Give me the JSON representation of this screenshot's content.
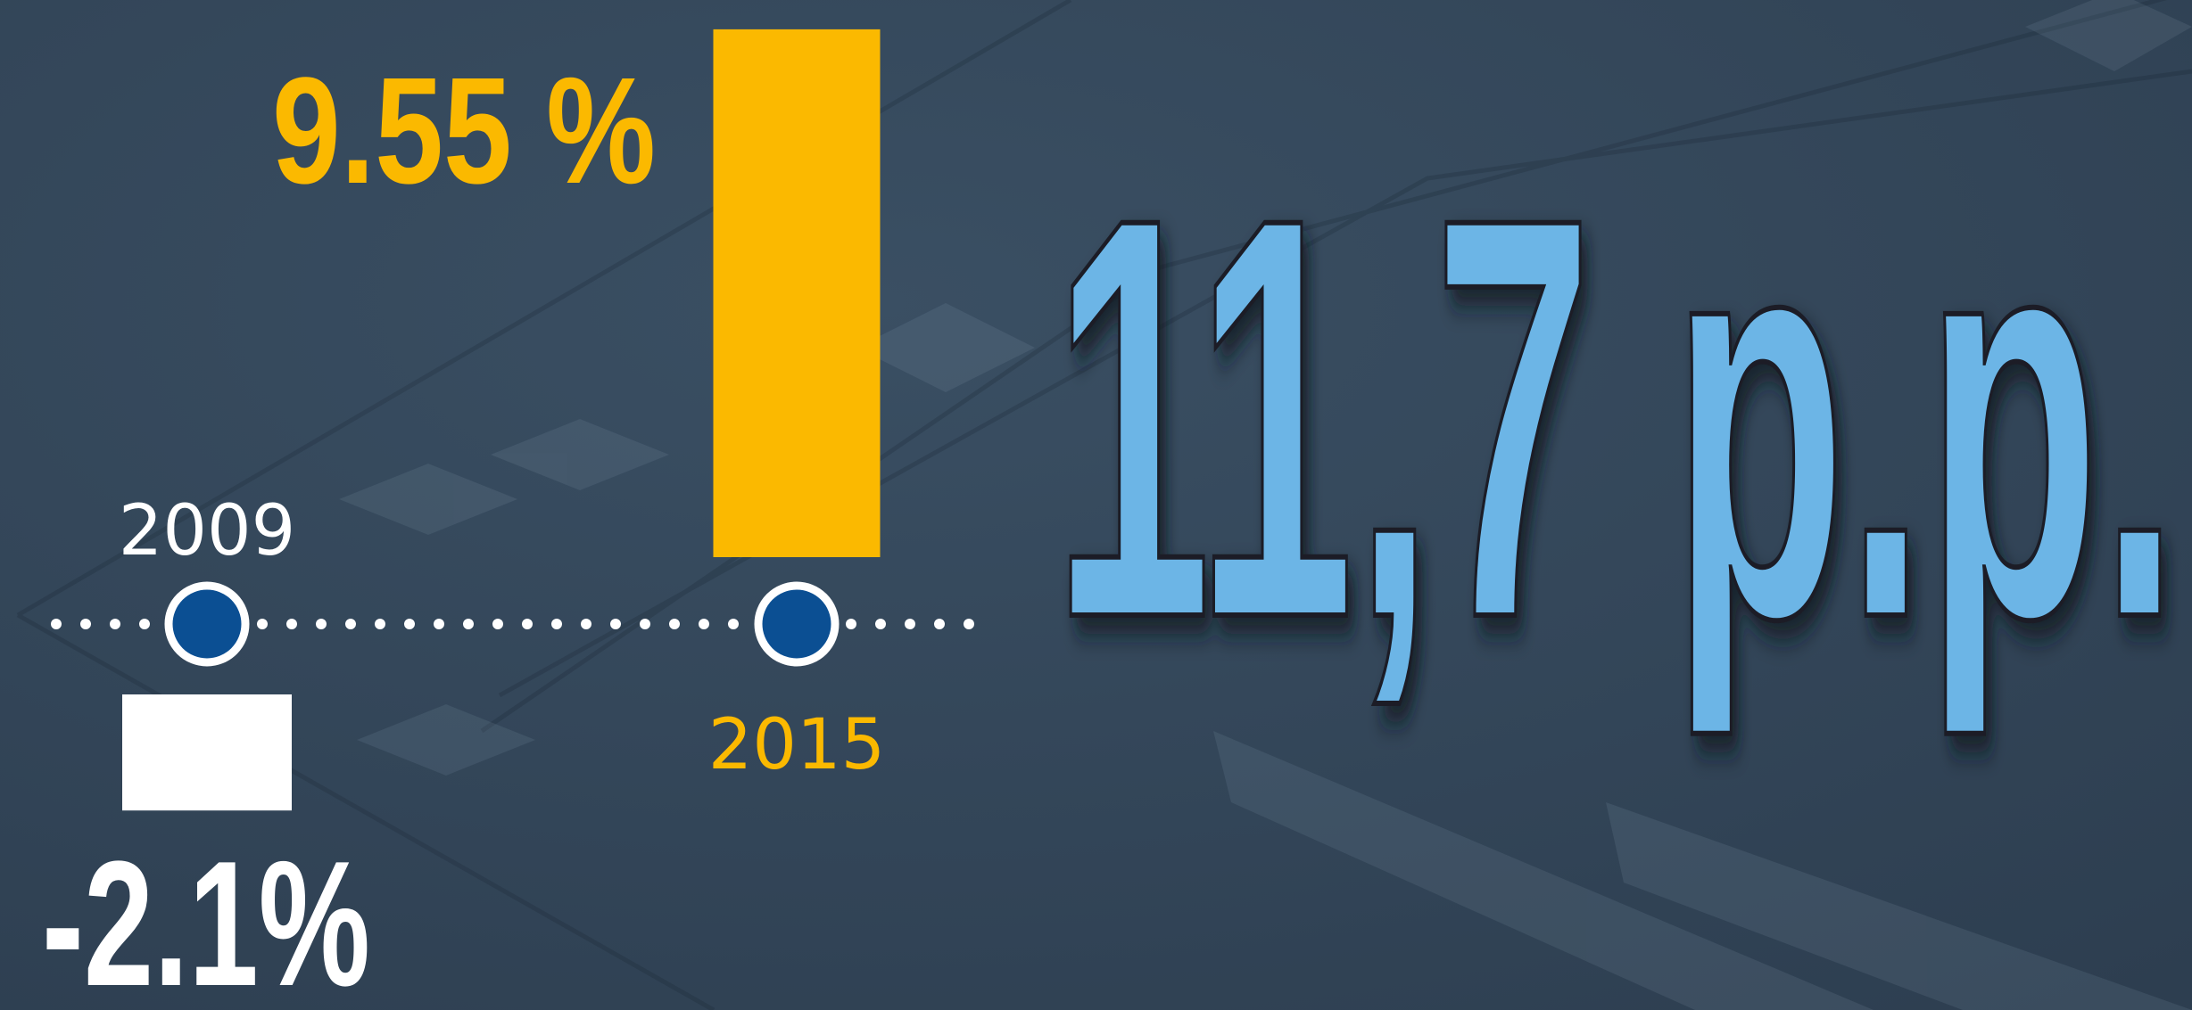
{
  "chart_data": {
    "type": "bar",
    "categories": [
      "2009",
      "2015"
    ],
    "values": [
      -2.1,
      9.55
    ],
    "value_labels": [
      "-2.1%",
      "9.55 %"
    ],
    "colors": [
      "#ffffff",
      "#fbb900"
    ],
    "annotation": "11,7 p.p."
  }
}
